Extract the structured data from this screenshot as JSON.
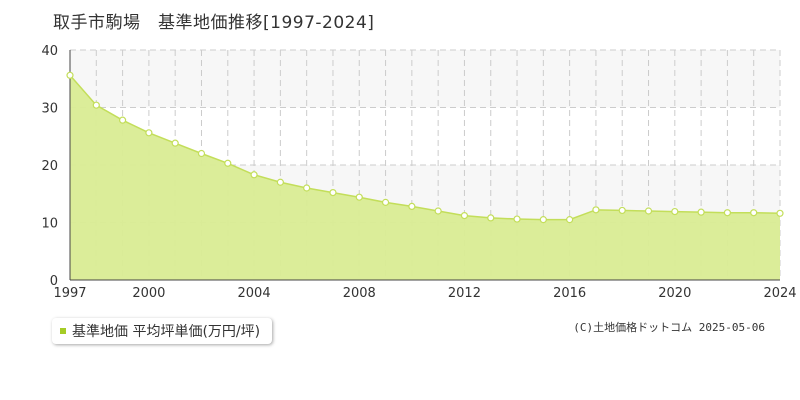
{
  "chart_data": {
    "type": "area",
    "title": "取手市駒場　基準地価推移[1997-2024]",
    "x": [
      1997,
      1998,
      1999,
      2000,
      2001,
      2002,
      2003,
      2004,
      2005,
      2006,
      2007,
      2008,
      2009,
      2010,
      2011,
      2012,
      2013,
      2014,
      2015,
      2016,
      2017,
      2018,
      2019,
      2020,
      2021,
      2022,
      2023,
      2024
    ],
    "x_tick_labels": [
      "1997",
      "2000",
      "2004",
      "2008",
      "2012",
      "2016",
      "2020",
      "2024"
    ],
    "y_ticks": [
      0,
      10,
      20,
      30,
      40
    ],
    "ylim": [
      0,
      40
    ],
    "xlim": [
      1997,
      2024
    ],
    "grid": true,
    "series": [
      {
        "name": "基準地価 平均坪単価(万円/坪)",
        "values": [
          35.6,
          30.4,
          27.8,
          25.6,
          23.8,
          22.0,
          20.3,
          18.3,
          17.0,
          16.0,
          15.2,
          14.4,
          13.5,
          12.8,
          12.0,
          11.2,
          10.8,
          10.6,
          10.5,
          10.5,
          12.2,
          12.1,
          12.0,
          11.9,
          11.8,
          11.7,
          11.7,
          11.6
        ]
      }
    ],
    "colors": {
      "fill": "#d9ec94",
      "line": "#c3de5a",
      "point_fill": "#ffffff",
      "legend_marker": "#a5cc26",
      "band": "#f7f7f7"
    },
    "legend": {
      "label": "基準地価 平均坪単価(万円/坪)",
      "position": "bottom-left"
    }
  },
  "copyright": "(C)土地価格ドットコム 2025-05-06"
}
